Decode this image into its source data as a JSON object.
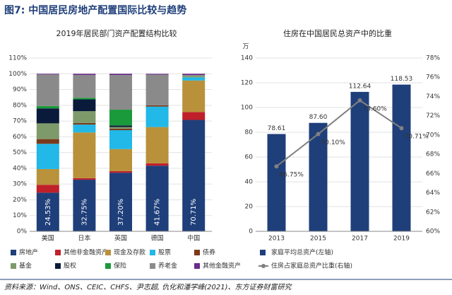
{
  "title": "图7: 中国居民房地产配置国际比较与趋势",
  "source": "资料来源：Wind、ONS、CEIC、CHFS、尹志超, 仇化和潘学峰(2021)、东方证券财富研究",
  "chart_data": [
    {
      "type": "bar",
      "stacked": true,
      "title": "2019年居民部门资产配置结构比较",
      "categories": [
        "美国",
        "日本",
        "英国",
        "德国",
        "中国"
      ],
      "ylim": [
        0,
        110
      ],
      "yticks": [
        {
          "value": 0,
          "label": "0%"
        },
        {
          "value": 10,
          "label": "10%"
        },
        {
          "value": 20,
          "label": "20%"
        },
        {
          "value": 30,
          "label": "30%"
        },
        {
          "value": 40,
          "label": "40%"
        },
        {
          "value": 50,
          "label": "50%"
        },
        {
          "value": 60,
          "label": "60%"
        },
        {
          "value": 70,
          "label": "70%"
        },
        {
          "value": 80,
          "label": "80%"
        },
        {
          "value": 90,
          "label": "90%"
        },
        {
          "value": 100,
          "label": "100%"
        },
        {
          "value": 110,
          "label": "110%"
        }
      ],
      "grid": true,
      "series": [
        {
          "name": "房地产",
          "color": "#1f3f7a",
          "values": [
            24.53,
            32.75,
            37.2,
            41.67,
            70.71
          ],
          "value_labels": [
            "24.53%",
            "32.75%",
            "37.20%",
            "41.67%",
            "70.71%"
          ]
        },
        {
          "name": "其他非金融资产",
          "color": "#c0202a",
          "values": [
            5,
            1,
            1,
            1.5,
            5
          ]
        },
        {
          "name": "现金及存款",
          "color": "#b8913a",
          "values": [
            10,
            29,
            14,
            23,
            20
          ]
        },
        {
          "name": "股票",
          "color": "#22b8e8",
          "values": [
            16,
            5,
            12,
            13,
            2
          ]
        },
        {
          "name": "债券",
          "color": "#7a3a1a",
          "values": [
            3,
            1,
            1,
            0.8,
            0
          ]
        },
        {
          "name": "基金",
          "color": "#7e9a6a",
          "values": [
            10,
            7.5,
            1,
            0,
            1
          ]
        },
        {
          "name": "股权",
          "color": "#0a1a3a",
          "values": [
            9.5,
            7.5,
            1,
            0,
            0
          ]
        },
        {
          "name": "保险",
          "color": "#1a9a3a",
          "values": [
            1.5,
            1,
            10,
            0,
            0
          ]
        },
        {
          "name": "养老金",
          "color": "#8a8a8a",
          "values": [
            20,
            14.5,
            22,
            19.5,
            0.5
          ]
        },
        {
          "name": "其他金融资产",
          "color": "#6a2a8a",
          "values": [
            0.47,
            0.75,
            0.8,
            0.5,
            0.79
          ]
        }
      ]
    },
    {
      "type": "bar_line",
      "title": "住房在中国居民总资产中的比重",
      "y_unit": "万",
      "categories": [
        "2013",
        "2015",
        "2017",
        "2019"
      ],
      "ylim": [
        0,
        140
      ],
      "yticks": [
        0,
        20,
        40,
        60,
        80,
        100,
        120,
        140
      ],
      "y2lim": [
        60,
        78
      ],
      "y2ticks": [
        {
          "value": 60,
          "label": "60%"
        },
        {
          "value": 62,
          "label": "62%"
        },
        {
          "value": 64,
          "label": "64%"
        },
        {
          "value": 66,
          "label": "66%"
        },
        {
          "value": 68,
          "label": "68%"
        },
        {
          "value": 70,
          "label": "70%"
        },
        {
          "value": 72,
          "label": "72%"
        },
        {
          "value": 74,
          "label": "74%"
        },
        {
          "value": 76,
          "label": "76%"
        },
        {
          "value": 78,
          "label": "78%"
        }
      ],
      "grid": true,
      "series": [
        {
          "name": "家庭平均总资产(左轴)",
          "color": "#1f3f7a",
          "values": [
            78.61,
            87.6,
            112.64,
            118.53
          ],
          "value_labels": [
            "78.61",
            "87.60",
            "112.64",
            "118.53"
          ]
        },
        {
          "name": "住房占家庭总资产比重(右轴)",
          "color": "#808080",
          "axis": "y2",
          "values": [
            66.75,
            70.1,
            73.6,
            70.71
          ],
          "value_labels": [
            "66.75%",
            "70.10%",
            "73.60%",
            "70.71%"
          ]
        }
      ]
    }
  ]
}
